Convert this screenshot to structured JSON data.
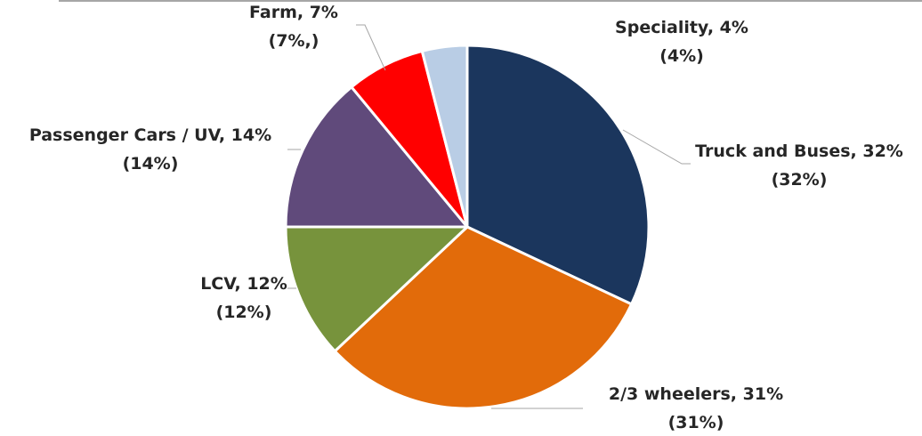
{
  "chart_data": {
    "type": "pie",
    "title": "",
    "start_angle_deg": 0,
    "direction": "clockwise",
    "slice_border_color": "#ffffff",
    "leader_line_color": "#a6a6a6",
    "top_rule_color": "#a6a6a6",
    "slices": [
      {
        "name": "Truck and Buses",
        "value": 32,
        "color": "#1b365d",
        "label_line1": "Truck and Buses, 32%",
        "label_line2": "(32%)"
      },
      {
        "name": "2/3 wheelers",
        "value": 31,
        "color": "#e26b0a",
        "label_line1": "2/3 wheelers, 31%",
        "label_line2": "(31%)"
      },
      {
        "name": "LCV",
        "value": 12,
        "color": "#77933c",
        "label_line1": "LCV, 12%",
        "label_line2": "(12%)"
      },
      {
        "name": "Passenger Cars / UV",
        "value": 14,
        "color": "#604a7b",
        "label_line1": "Passenger Cars / UV, 14%",
        "label_line2": "(14%)"
      },
      {
        "name": "Farm",
        "value": 7,
        "color": "#ff0000",
        "label_line1": "Farm, 7%",
        "label_line2": "(7%,)"
      },
      {
        "name": "Speciality",
        "value": 4,
        "color": "#b9cde5",
        "label_line1": "Speciality, 4%",
        "label_line2": "(4%)"
      }
    ]
  }
}
